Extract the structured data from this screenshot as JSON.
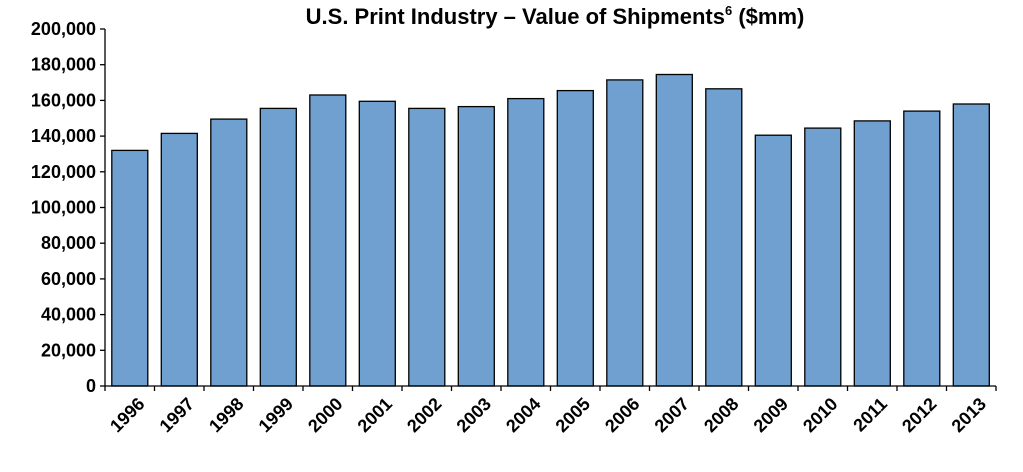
{
  "chart_data": {
    "type": "bar",
    "title": "U.S. Print Industry – Value of Shipments",
    "title_superscript": "6",
    "title_suffix": "($mm)",
    "xlabel": "",
    "ylabel": "",
    "categories": [
      "1996",
      "1997",
      "1998",
      "1999",
      "2000",
      "2001",
      "2002",
      "2003",
      "2004",
      "2005",
      "2006",
      "2007",
      "2008",
      "2009",
      "2010",
      "2011",
      "2012",
      "2013"
    ],
    "values": [
      132000,
      141500,
      149500,
      155500,
      163000,
      159500,
      155500,
      156500,
      161000,
      165500,
      171500,
      174500,
      166500,
      140500,
      144500,
      148500,
      154000,
      158000
    ],
    "ylim": [
      0,
      200000
    ],
    "yticks": [
      0,
      20000,
      40000,
      60000,
      80000,
      100000,
      120000,
      140000,
      160000,
      180000,
      200000
    ],
    "ytick_labels": [
      "0",
      "20,000",
      "40,000",
      "60,000",
      "80,000",
      "100,000",
      "120,000",
      "140,000",
      "160,000",
      "180,000",
      "200,000"
    ],
    "grid": false,
    "legend": "none",
    "bar_color": "#6fa0cf",
    "bar_edge_color": "#000000"
  }
}
